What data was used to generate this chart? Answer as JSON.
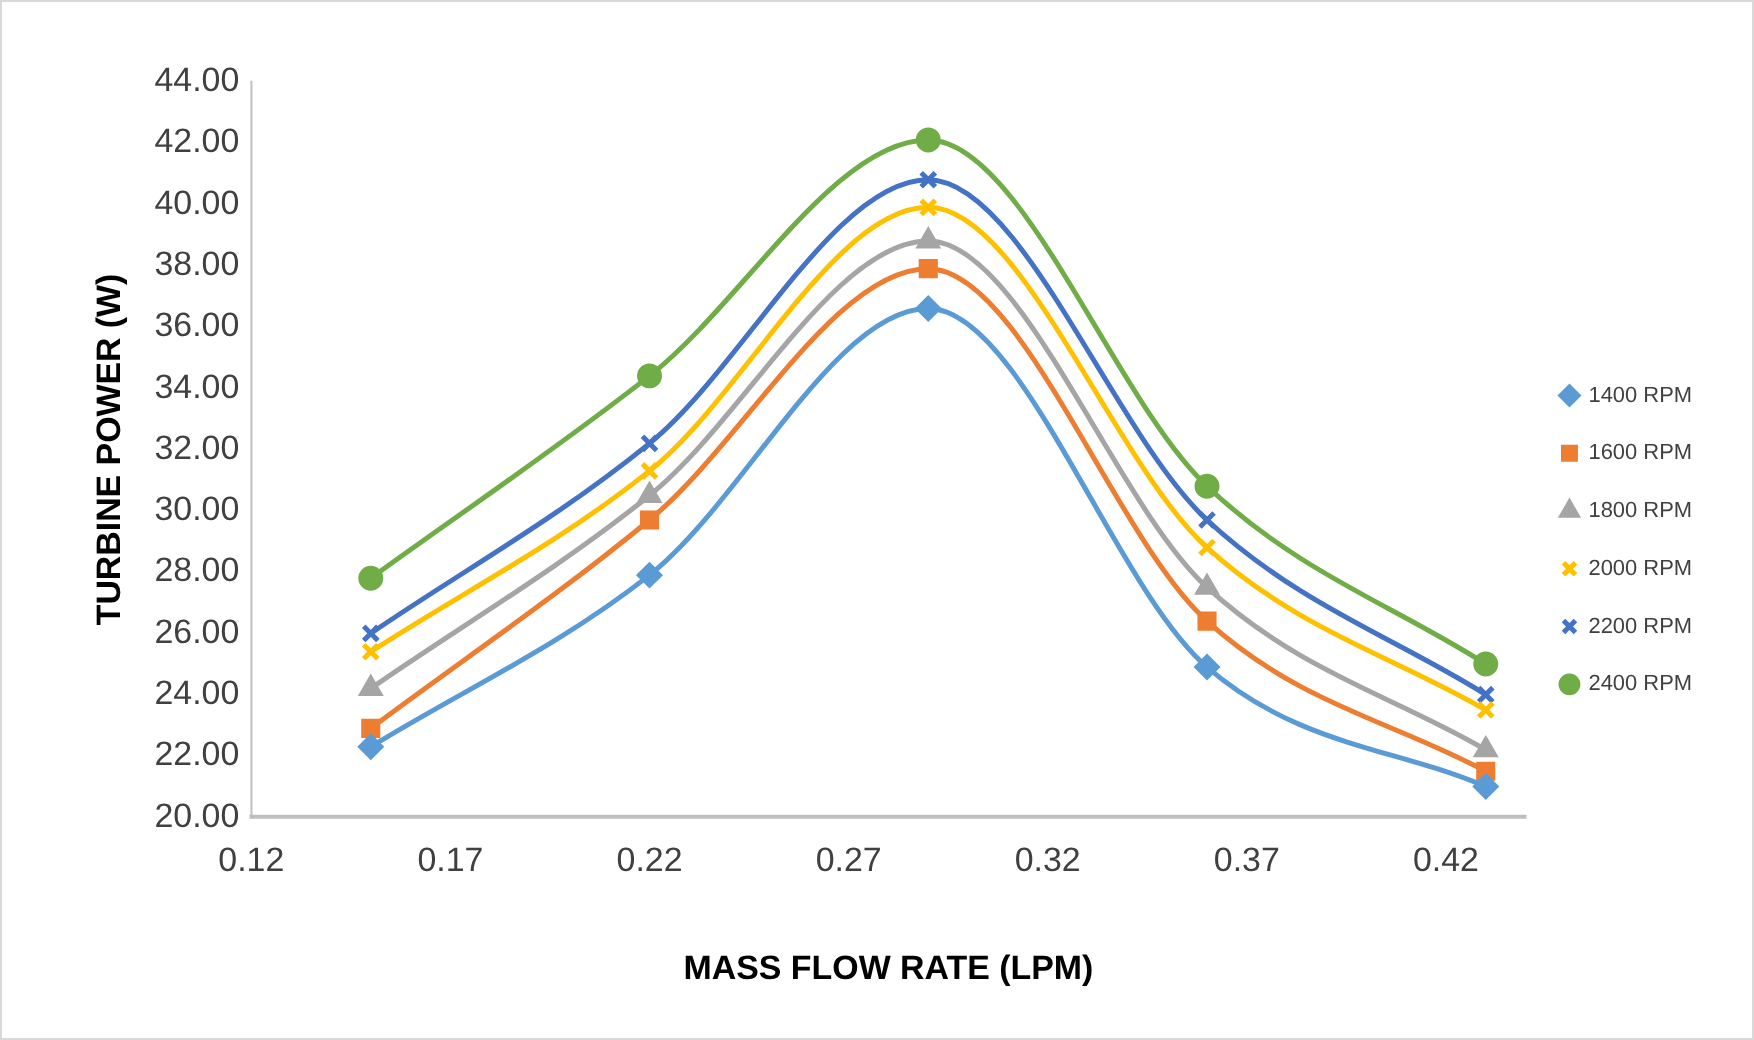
{
  "chart_data": {
    "type": "line",
    "xlabel": "MASS FLOW RATE (LPM)",
    "ylabel": "TURBINE POWER (W)",
    "x": [
      0.15,
      0.22,
      0.29,
      0.36,
      0.43
    ],
    "xlim": [
      0.12,
      0.44
    ],
    "xticks": [
      0.12,
      0.17,
      0.22,
      0.27,
      0.32,
      0.37,
      0.42
    ],
    "ylim": [
      20,
      44
    ],
    "yticks": [
      {
        "value": 20,
        "label": "20.00"
      },
      {
        "value": 22,
        "label": "22.00"
      },
      {
        "value": 24,
        "label": "24.00"
      },
      {
        "value": 26,
        "label": "26.00"
      },
      {
        "value": 28,
        "label": "28.00"
      },
      {
        "value": 30,
        "label": "30.00"
      },
      {
        "value": 32,
        "label": "32.00"
      },
      {
        "value": 34,
        "label": "34.00"
      },
      {
        "value": 36,
        "label": "36.00"
      },
      {
        "value": 38,
        "label": "38.00"
      },
      {
        "value": 40,
        "label": "40.00"
      },
      {
        "value": 42,
        "label": "42.00"
      },
      {
        "value": 44,
        "label": "44.00"
      }
    ],
    "grid": false,
    "legend": "right",
    "line_style": "solid",
    "series": [
      {
        "name": "1400 RPM",
        "color": "#5b9bd5",
        "marker": "diamond",
        "values": [
          22.3,
          27.9,
          36.6,
          24.9,
          21.0
        ]
      },
      {
        "name": "1600 RPM",
        "color": "#ed7d31",
        "marker": "square",
        "values": [
          22.9,
          29.7,
          37.9,
          26.4,
          21.5
        ]
      },
      {
        "name": "1800 RPM",
        "color": "#a5a5a5",
        "marker": "triangle",
        "values": [
          24.2,
          30.5,
          38.8,
          27.5,
          22.2
        ]
      },
      {
        "name": "2000 RPM",
        "color": "#ffc000",
        "marker": "cross",
        "values": [
          25.4,
          31.3,
          39.9,
          28.8,
          23.5
        ]
      },
      {
        "name": "2200 RPM",
        "color": "#4472c4",
        "marker": "cross",
        "values": [
          26.0,
          32.2,
          40.8,
          29.7,
          24.0
        ]
      },
      {
        "name": "2400 RPM",
        "color": "#70ad47",
        "marker": "circle",
        "values": [
          27.8,
          34.4,
          42.1,
          30.8,
          25.0
        ]
      }
    ]
  }
}
